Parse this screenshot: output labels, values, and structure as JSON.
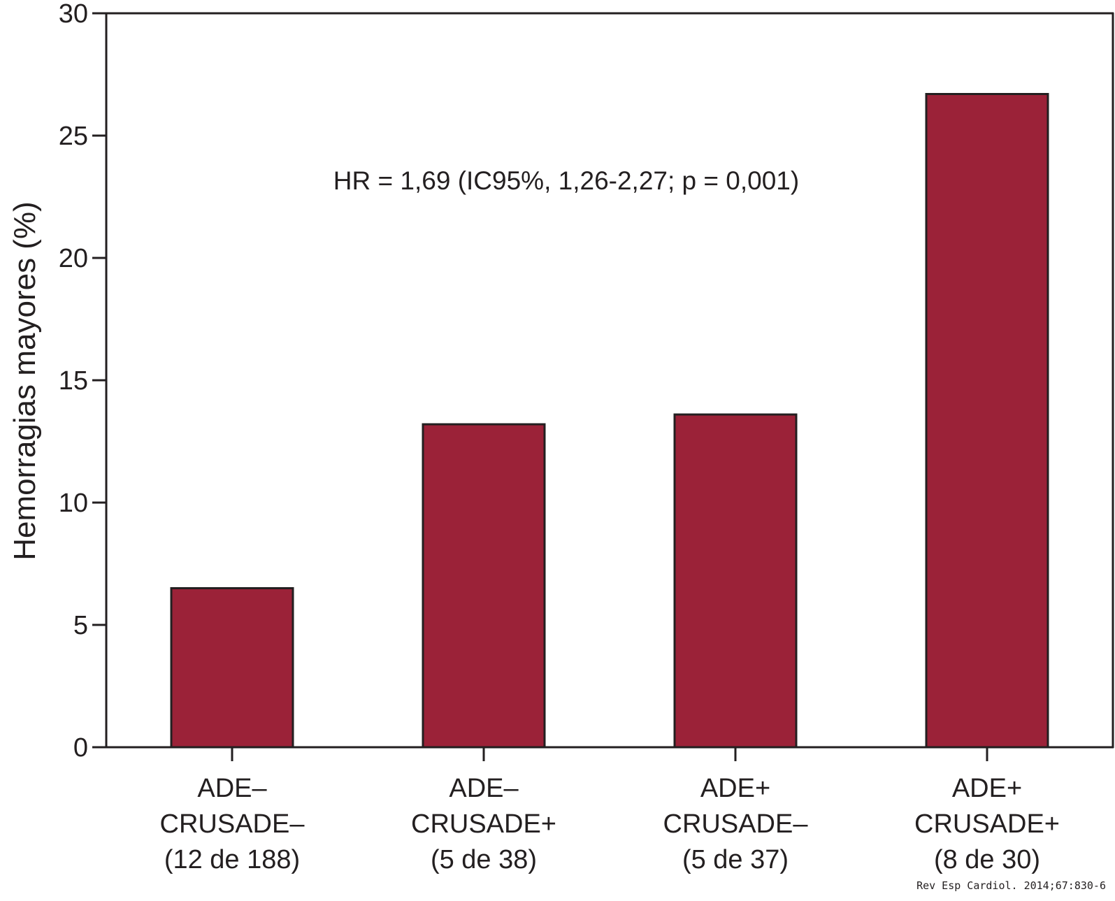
{
  "chart_data": {
    "type": "bar",
    "categories": [
      [
        "ADE–",
        "CRUSADE–",
        "(12 de 188)"
      ],
      [
        "ADE–",
        "CRUSADE+",
        "(5 de 38)"
      ],
      [
        "ADE+",
        "CRUSADE–",
        "(5 de 37)"
      ],
      [
        "ADE+",
        "CRUSADE+",
        "(8 de 30)"
      ]
    ],
    "values": [
      6.5,
      13.2,
      13.6,
      26.7
    ],
    "ylabel": "Hemorragias mayores (%)",
    "xlabel": "",
    "ylim": [
      0,
      30
    ],
    "yticks": [
      "0",
      "5",
      "10",
      "15",
      "20",
      "25",
      "30"
    ],
    "annotation": "HR = 1,69 (IC95%, 1,26-2,27; p = 0,001)",
    "bar_color": "#9b2238",
    "grid": false
  },
  "credit": "Rev Esp Cardiol. 2014;67:830-6"
}
